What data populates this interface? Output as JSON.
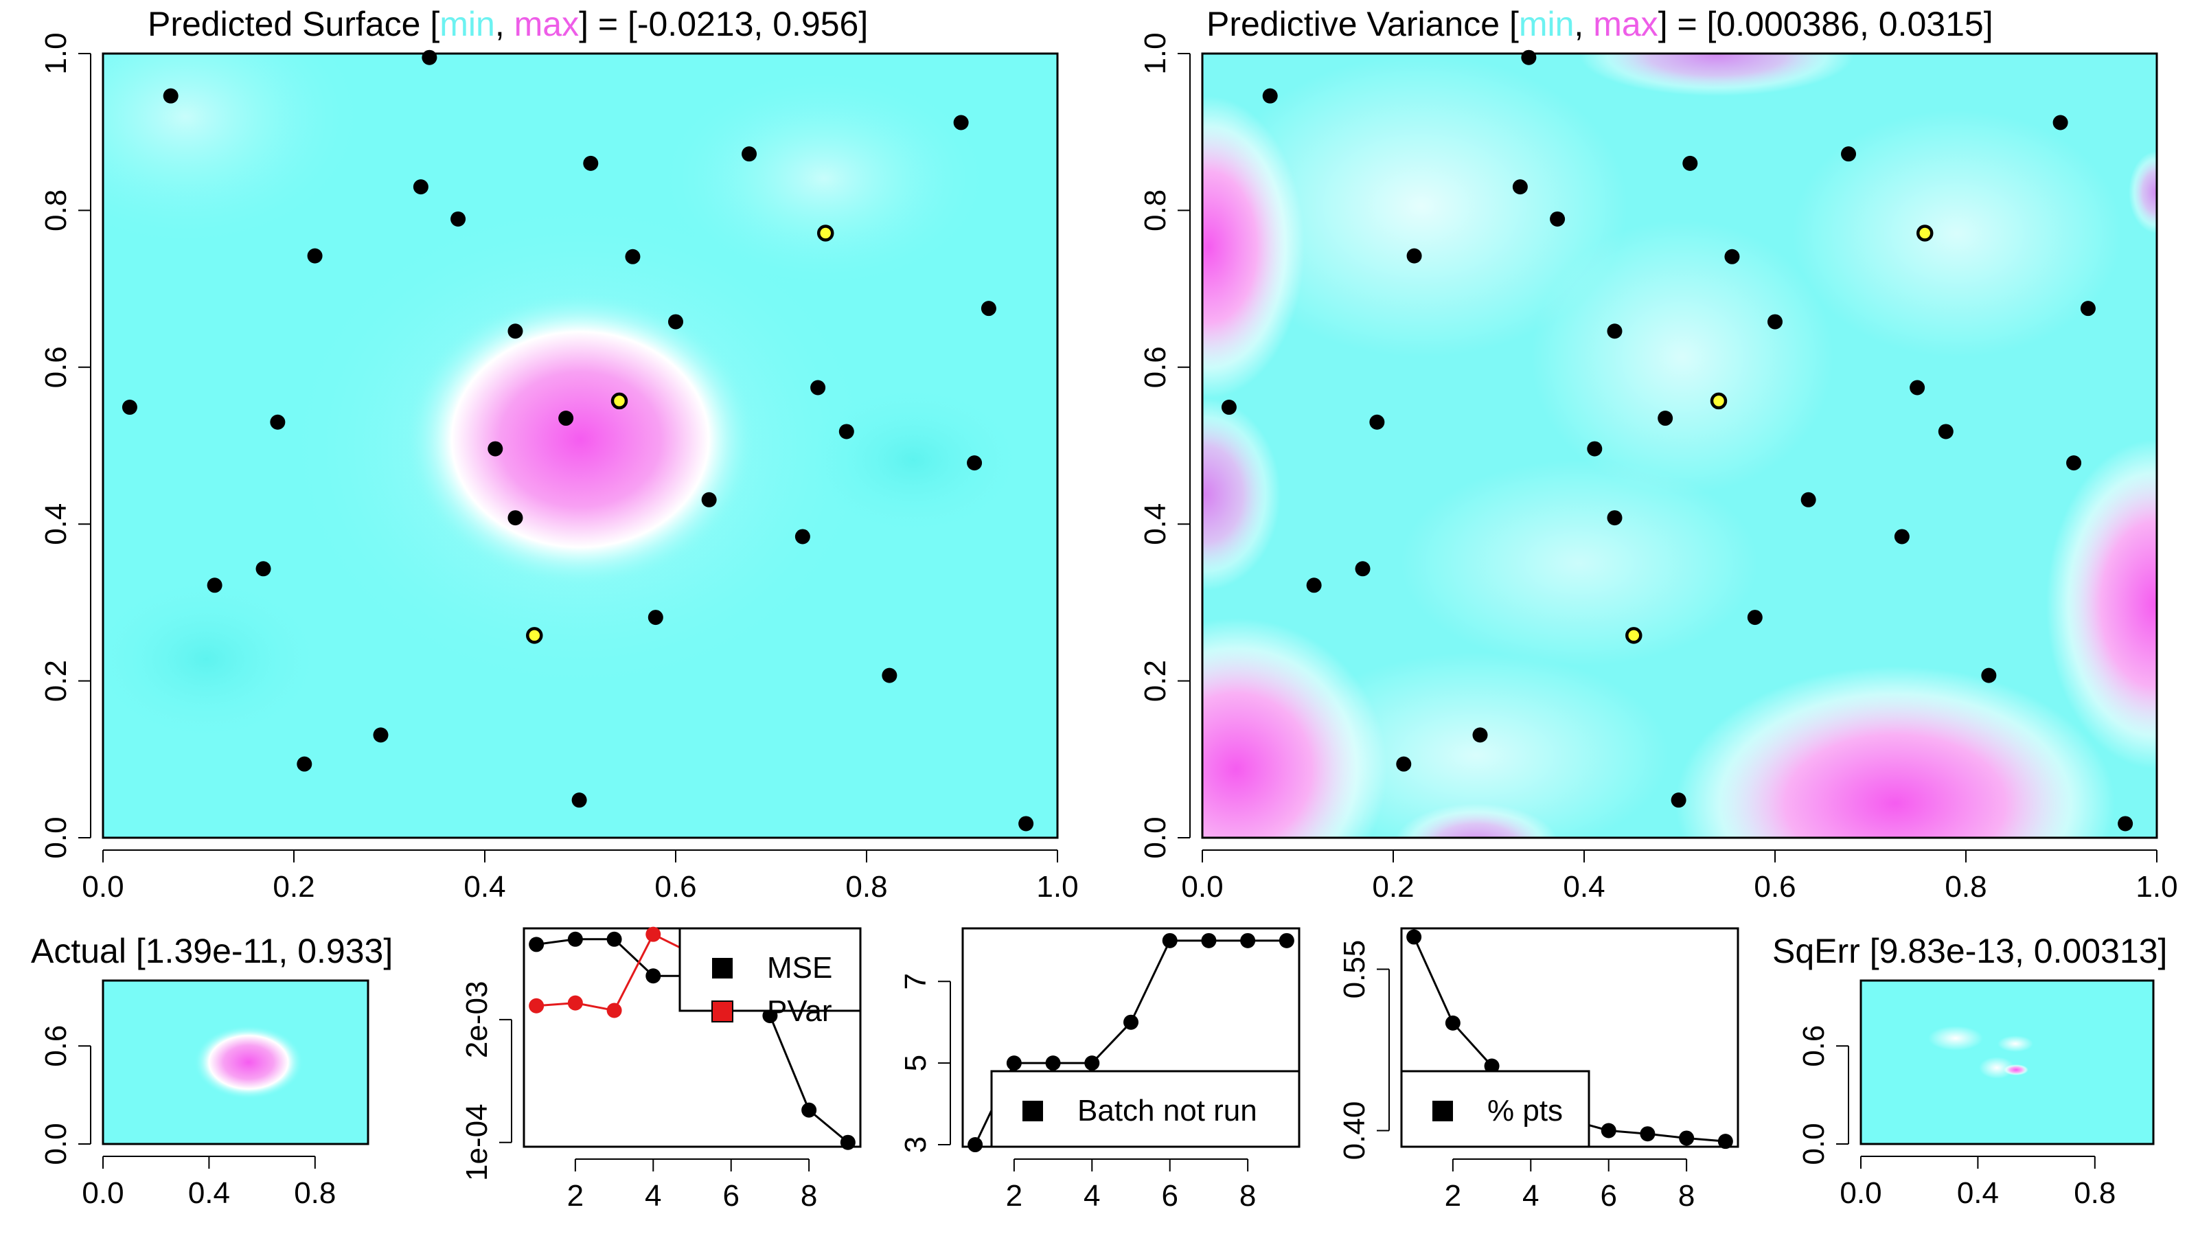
{
  "colors": {
    "low": "#79FBF7",
    "mid": "#FFFFFF",
    "high": "#F55CF0",
    "min_label": "#6CF2F1",
    "max_label": "#EE5DE8",
    "point": "#000000",
    "highlight": "#FFFF33",
    "series_pvar": "#E41A1C",
    "series_mse": "#000000"
  },
  "panels": {
    "surface": {
      "title_prefix": "Predicted Surface [",
      "title_min": "min",
      "title_sep": ", ",
      "title_max": "max",
      "title_suffix": "] = [-0.0213, 0.956]"
    },
    "variance": {
      "title_prefix": "Predictive Variance [",
      "title_min": "min",
      "title_sep": ", ",
      "title_max": "max",
      "title_suffix": "] = [0.000386, 0.0315]"
    },
    "actual": {
      "title": "Actual [1.39e-11, 0.933]"
    },
    "sqerr": {
      "title": "SqErr [9.83e-13, 0.00313]"
    }
  },
  "chart_data": [
    {
      "type": "heatmap",
      "id": "predicted-surface",
      "title": "Predicted Surface [min, max] = [-0.0213, 0.956]",
      "xlim": [
        0,
        1
      ],
      "ylim": [
        0,
        1
      ],
      "x_ticks": [
        "0.0",
        "0.2",
        "0.4",
        "0.6",
        "0.8",
        "1.0"
      ],
      "y_ticks": [
        "0.0",
        "0.2",
        "0.4",
        "0.6",
        "0.8",
        "1.0"
      ],
      "value_range": [
        -0.0213,
        0.956
      ],
      "peak": {
        "x": 0.5,
        "y": 0.5
      }
    },
    {
      "type": "heatmap",
      "id": "predictive-variance",
      "title": "Predictive Variance [min, max] = [0.000386, 0.0315]",
      "xlim": [
        0,
        1
      ],
      "ylim": [
        0,
        1
      ],
      "x_ticks": [
        "0.0",
        "0.2",
        "0.4",
        "0.6",
        "0.8",
        "1.0"
      ],
      "y_ticks": [
        "0.0",
        "0.2",
        "0.4",
        "0.6",
        "0.8",
        "1.0"
      ],
      "value_range": [
        0.000386,
        0.0315
      ]
    },
    {
      "type": "scatter",
      "id": "design-points",
      "points": [
        [
          0.342,
          0.995
        ],
        [
          0.071,
          0.946
        ],
        [
          0.899,
          0.912
        ],
        [
          0.677,
          0.872
        ],
        [
          0.511,
          0.86
        ],
        [
          0.333,
          0.83
        ],
        [
          0.372,
          0.789
        ],
        [
          0.222,
          0.742
        ],
        [
          0.555,
          0.741
        ],
        [
          0.928,
          0.675
        ],
        [
          0.6,
          0.658
        ],
        [
          0.432,
          0.646
        ],
        [
          0.749,
          0.574
        ],
        [
          0.028,
          0.549
        ],
        [
          0.485,
          0.535
        ],
        [
          0.183,
          0.53
        ],
        [
          0.779,
          0.518
        ],
        [
          0.411,
          0.496
        ],
        [
          0.913,
          0.478
        ],
        [
          0.635,
          0.431
        ],
        [
          0.432,
          0.408
        ],
        [
          0.733,
          0.384
        ],
        [
          0.168,
          0.343
        ],
        [
          0.117,
          0.322
        ],
        [
          0.579,
          0.281
        ],
        [
          0.824,
          0.207
        ],
        [
          0.291,
          0.131
        ],
        [
          0.211,
          0.094
        ],
        [
          0.499,
          0.048
        ],
        [
          0.967,
          0.018
        ]
      ],
      "highlighted": [
        [
          0.757,
          0.771
        ],
        [
          0.541,
          0.557
        ],
        [
          0.452,
          0.258
        ]
      ]
    },
    {
      "type": "heatmap",
      "id": "actual",
      "title": "Actual [1.39e-11, 0.933]",
      "xlim": [
        0,
        1
      ],
      "ylim": [
        0,
        1
      ],
      "x_ticks": [
        "0.0",
        "0.4",
        "0.8"
      ],
      "y_ticks": [
        "0.0",
        "0.6"
      ],
      "value_range": [
        1.39e-11,
        0.933
      ]
    },
    {
      "type": "line",
      "id": "mse-pvar",
      "x": [
        1,
        2,
        3,
        4,
        5,
        6,
        7,
        8,
        9
      ],
      "x_ticks": [
        "2",
        "4",
        "6",
        "8"
      ],
      "y_scale": "log",
      "y_ticks": [
        "1e-04",
        "2e-03"
      ],
      "series": [
        {
          "name": "MSE",
          "values": [
            0.0125,
            0.0142,
            0.0142,
            0.0058,
            0.0058,
            0.0058,
            0.0022,
            0.00022,
            0.0001
          ]
        },
        {
          "name": "PVar",
          "values": [
            0.0028,
            0.003,
            0.0025,
            0.016,
            0.01,
            0.0085,
            0.0085,
            0.0075,
            0.0065
          ]
        }
      ],
      "legend": "top-right"
    },
    {
      "type": "line",
      "id": "batch-not-run",
      "x": [
        1,
        2,
        3,
        4,
        5,
        6,
        7,
        8,
        9
      ],
      "x_ticks": [
        "2",
        "4",
        "6",
        "8"
      ],
      "y_ticks": [
        "3",
        "5",
        "7"
      ],
      "ylim": [
        3,
        8
      ],
      "series": [
        {
          "name": "Batch not run",
          "values": [
            3,
            5,
            5,
            5,
            6,
            8,
            8,
            8,
            8
          ]
        }
      ],
      "legend": "bottom-right"
    },
    {
      "type": "line",
      "id": "pct-pts",
      "x": [
        1,
        2,
        3,
        4,
        5,
        6,
        7,
        8,
        9
      ],
      "x_ticks": [
        "2",
        "4",
        "6",
        "8"
      ],
      "y_ticks": [
        "0.40",
        "0.55"
      ],
      "ylim": [
        0.39,
        0.58
      ],
      "series": [
        {
          "name": "% pts",
          "values": [
            0.58,
            0.5,
            0.46,
            0.43,
            0.41,
            0.4,
            0.397,
            0.393,
            0.39
          ]
        }
      ],
      "legend": "bottom-left"
    },
    {
      "type": "heatmap",
      "id": "sqerr",
      "title": "SqErr [9.83e-13, 0.00313]",
      "xlim": [
        0,
        1
      ],
      "ylim": [
        0,
        1
      ],
      "x_ticks": [
        "0.0",
        "0.4",
        "0.8"
      ],
      "y_ticks": [
        "0.0",
        "0.6"
      ],
      "value_range": [
        9.83e-13,
        0.00313
      ]
    }
  ]
}
